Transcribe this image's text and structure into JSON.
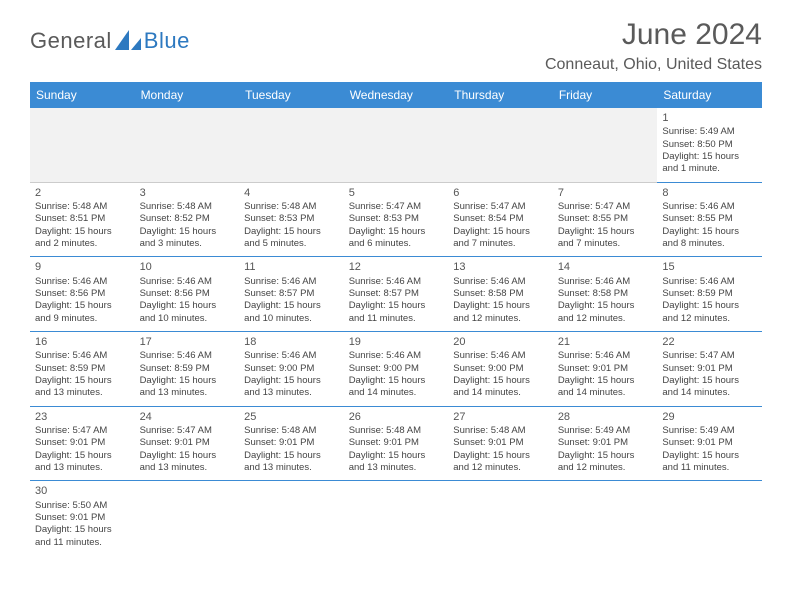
{
  "brand": {
    "part1": "General",
    "part2": "Blue",
    "text_color": "#5a5a5a",
    "accent_color": "#2d79c0"
  },
  "title": "June 2024",
  "location": "Conneaut, Ohio, United States",
  "header_bg": "#3b8bd4",
  "header_text_color": "#ffffff",
  "rule_color": "#3b8bd4",
  "blank_bg": "#f2f2f2",
  "day_headers": [
    "Sunday",
    "Monday",
    "Tuesday",
    "Wednesday",
    "Thursday",
    "Friday",
    "Saturday"
  ],
  "weeks": [
    [
      null,
      null,
      null,
      null,
      null,
      null,
      {
        "n": "1",
        "sunrise": "Sunrise: 5:49 AM",
        "sunset": "Sunset: 8:50 PM",
        "daylight": "Daylight: 15 hours and 1 minute."
      }
    ],
    [
      {
        "n": "2",
        "sunrise": "Sunrise: 5:48 AM",
        "sunset": "Sunset: 8:51 PM",
        "daylight": "Daylight: 15 hours and 2 minutes."
      },
      {
        "n": "3",
        "sunrise": "Sunrise: 5:48 AM",
        "sunset": "Sunset: 8:52 PM",
        "daylight": "Daylight: 15 hours and 3 minutes."
      },
      {
        "n": "4",
        "sunrise": "Sunrise: 5:48 AM",
        "sunset": "Sunset: 8:53 PM",
        "daylight": "Daylight: 15 hours and 5 minutes."
      },
      {
        "n": "5",
        "sunrise": "Sunrise: 5:47 AM",
        "sunset": "Sunset: 8:53 PM",
        "daylight": "Daylight: 15 hours and 6 minutes."
      },
      {
        "n": "6",
        "sunrise": "Sunrise: 5:47 AM",
        "sunset": "Sunset: 8:54 PM",
        "daylight": "Daylight: 15 hours and 7 minutes."
      },
      {
        "n": "7",
        "sunrise": "Sunrise: 5:47 AM",
        "sunset": "Sunset: 8:55 PM",
        "daylight": "Daylight: 15 hours and 7 minutes."
      },
      {
        "n": "8",
        "sunrise": "Sunrise: 5:46 AM",
        "sunset": "Sunset: 8:55 PM",
        "daylight": "Daylight: 15 hours and 8 minutes."
      }
    ],
    [
      {
        "n": "9",
        "sunrise": "Sunrise: 5:46 AM",
        "sunset": "Sunset: 8:56 PM",
        "daylight": "Daylight: 15 hours and 9 minutes."
      },
      {
        "n": "10",
        "sunrise": "Sunrise: 5:46 AM",
        "sunset": "Sunset: 8:56 PM",
        "daylight": "Daylight: 15 hours and 10 minutes."
      },
      {
        "n": "11",
        "sunrise": "Sunrise: 5:46 AM",
        "sunset": "Sunset: 8:57 PM",
        "daylight": "Daylight: 15 hours and 10 minutes."
      },
      {
        "n": "12",
        "sunrise": "Sunrise: 5:46 AM",
        "sunset": "Sunset: 8:57 PM",
        "daylight": "Daylight: 15 hours and 11 minutes."
      },
      {
        "n": "13",
        "sunrise": "Sunrise: 5:46 AM",
        "sunset": "Sunset: 8:58 PM",
        "daylight": "Daylight: 15 hours and 12 minutes."
      },
      {
        "n": "14",
        "sunrise": "Sunrise: 5:46 AM",
        "sunset": "Sunset: 8:58 PM",
        "daylight": "Daylight: 15 hours and 12 minutes."
      },
      {
        "n": "15",
        "sunrise": "Sunrise: 5:46 AM",
        "sunset": "Sunset: 8:59 PM",
        "daylight": "Daylight: 15 hours and 12 minutes."
      }
    ],
    [
      {
        "n": "16",
        "sunrise": "Sunrise: 5:46 AM",
        "sunset": "Sunset: 8:59 PM",
        "daylight": "Daylight: 15 hours and 13 minutes."
      },
      {
        "n": "17",
        "sunrise": "Sunrise: 5:46 AM",
        "sunset": "Sunset: 8:59 PM",
        "daylight": "Daylight: 15 hours and 13 minutes."
      },
      {
        "n": "18",
        "sunrise": "Sunrise: 5:46 AM",
        "sunset": "Sunset: 9:00 PM",
        "daylight": "Daylight: 15 hours and 13 minutes."
      },
      {
        "n": "19",
        "sunrise": "Sunrise: 5:46 AM",
        "sunset": "Sunset: 9:00 PM",
        "daylight": "Daylight: 15 hours and 14 minutes."
      },
      {
        "n": "20",
        "sunrise": "Sunrise: 5:46 AM",
        "sunset": "Sunset: 9:00 PM",
        "daylight": "Daylight: 15 hours and 14 minutes."
      },
      {
        "n": "21",
        "sunrise": "Sunrise: 5:46 AM",
        "sunset": "Sunset: 9:01 PM",
        "daylight": "Daylight: 15 hours and 14 minutes."
      },
      {
        "n": "22",
        "sunrise": "Sunrise: 5:47 AM",
        "sunset": "Sunset: 9:01 PM",
        "daylight": "Daylight: 15 hours and 14 minutes."
      }
    ],
    [
      {
        "n": "23",
        "sunrise": "Sunrise: 5:47 AM",
        "sunset": "Sunset: 9:01 PM",
        "daylight": "Daylight: 15 hours and 13 minutes."
      },
      {
        "n": "24",
        "sunrise": "Sunrise: 5:47 AM",
        "sunset": "Sunset: 9:01 PM",
        "daylight": "Daylight: 15 hours and 13 minutes."
      },
      {
        "n": "25",
        "sunrise": "Sunrise: 5:48 AM",
        "sunset": "Sunset: 9:01 PM",
        "daylight": "Daylight: 15 hours and 13 minutes."
      },
      {
        "n": "26",
        "sunrise": "Sunrise: 5:48 AM",
        "sunset": "Sunset: 9:01 PM",
        "daylight": "Daylight: 15 hours and 13 minutes."
      },
      {
        "n": "27",
        "sunrise": "Sunrise: 5:48 AM",
        "sunset": "Sunset: 9:01 PM",
        "daylight": "Daylight: 15 hours and 12 minutes."
      },
      {
        "n": "28",
        "sunrise": "Sunrise: 5:49 AM",
        "sunset": "Sunset: 9:01 PM",
        "daylight": "Daylight: 15 hours and 12 minutes."
      },
      {
        "n": "29",
        "sunrise": "Sunrise: 5:49 AM",
        "sunset": "Sunset: 9:01 PM",
        "daylight": "Daylight: 15 hours and 11 minutes."
      }
    ],
    [
      {
        "n": "30",
        "sunrise": "Sunrise: 5:50 AM",
        "sunset": "Sunset: 9:01 PM",
        "daylight": "Daylight: 15 hours and 11 minutes."
      },
      null,
      null,
      null,
      null,
      null,
      null
    ]
  ]
}
